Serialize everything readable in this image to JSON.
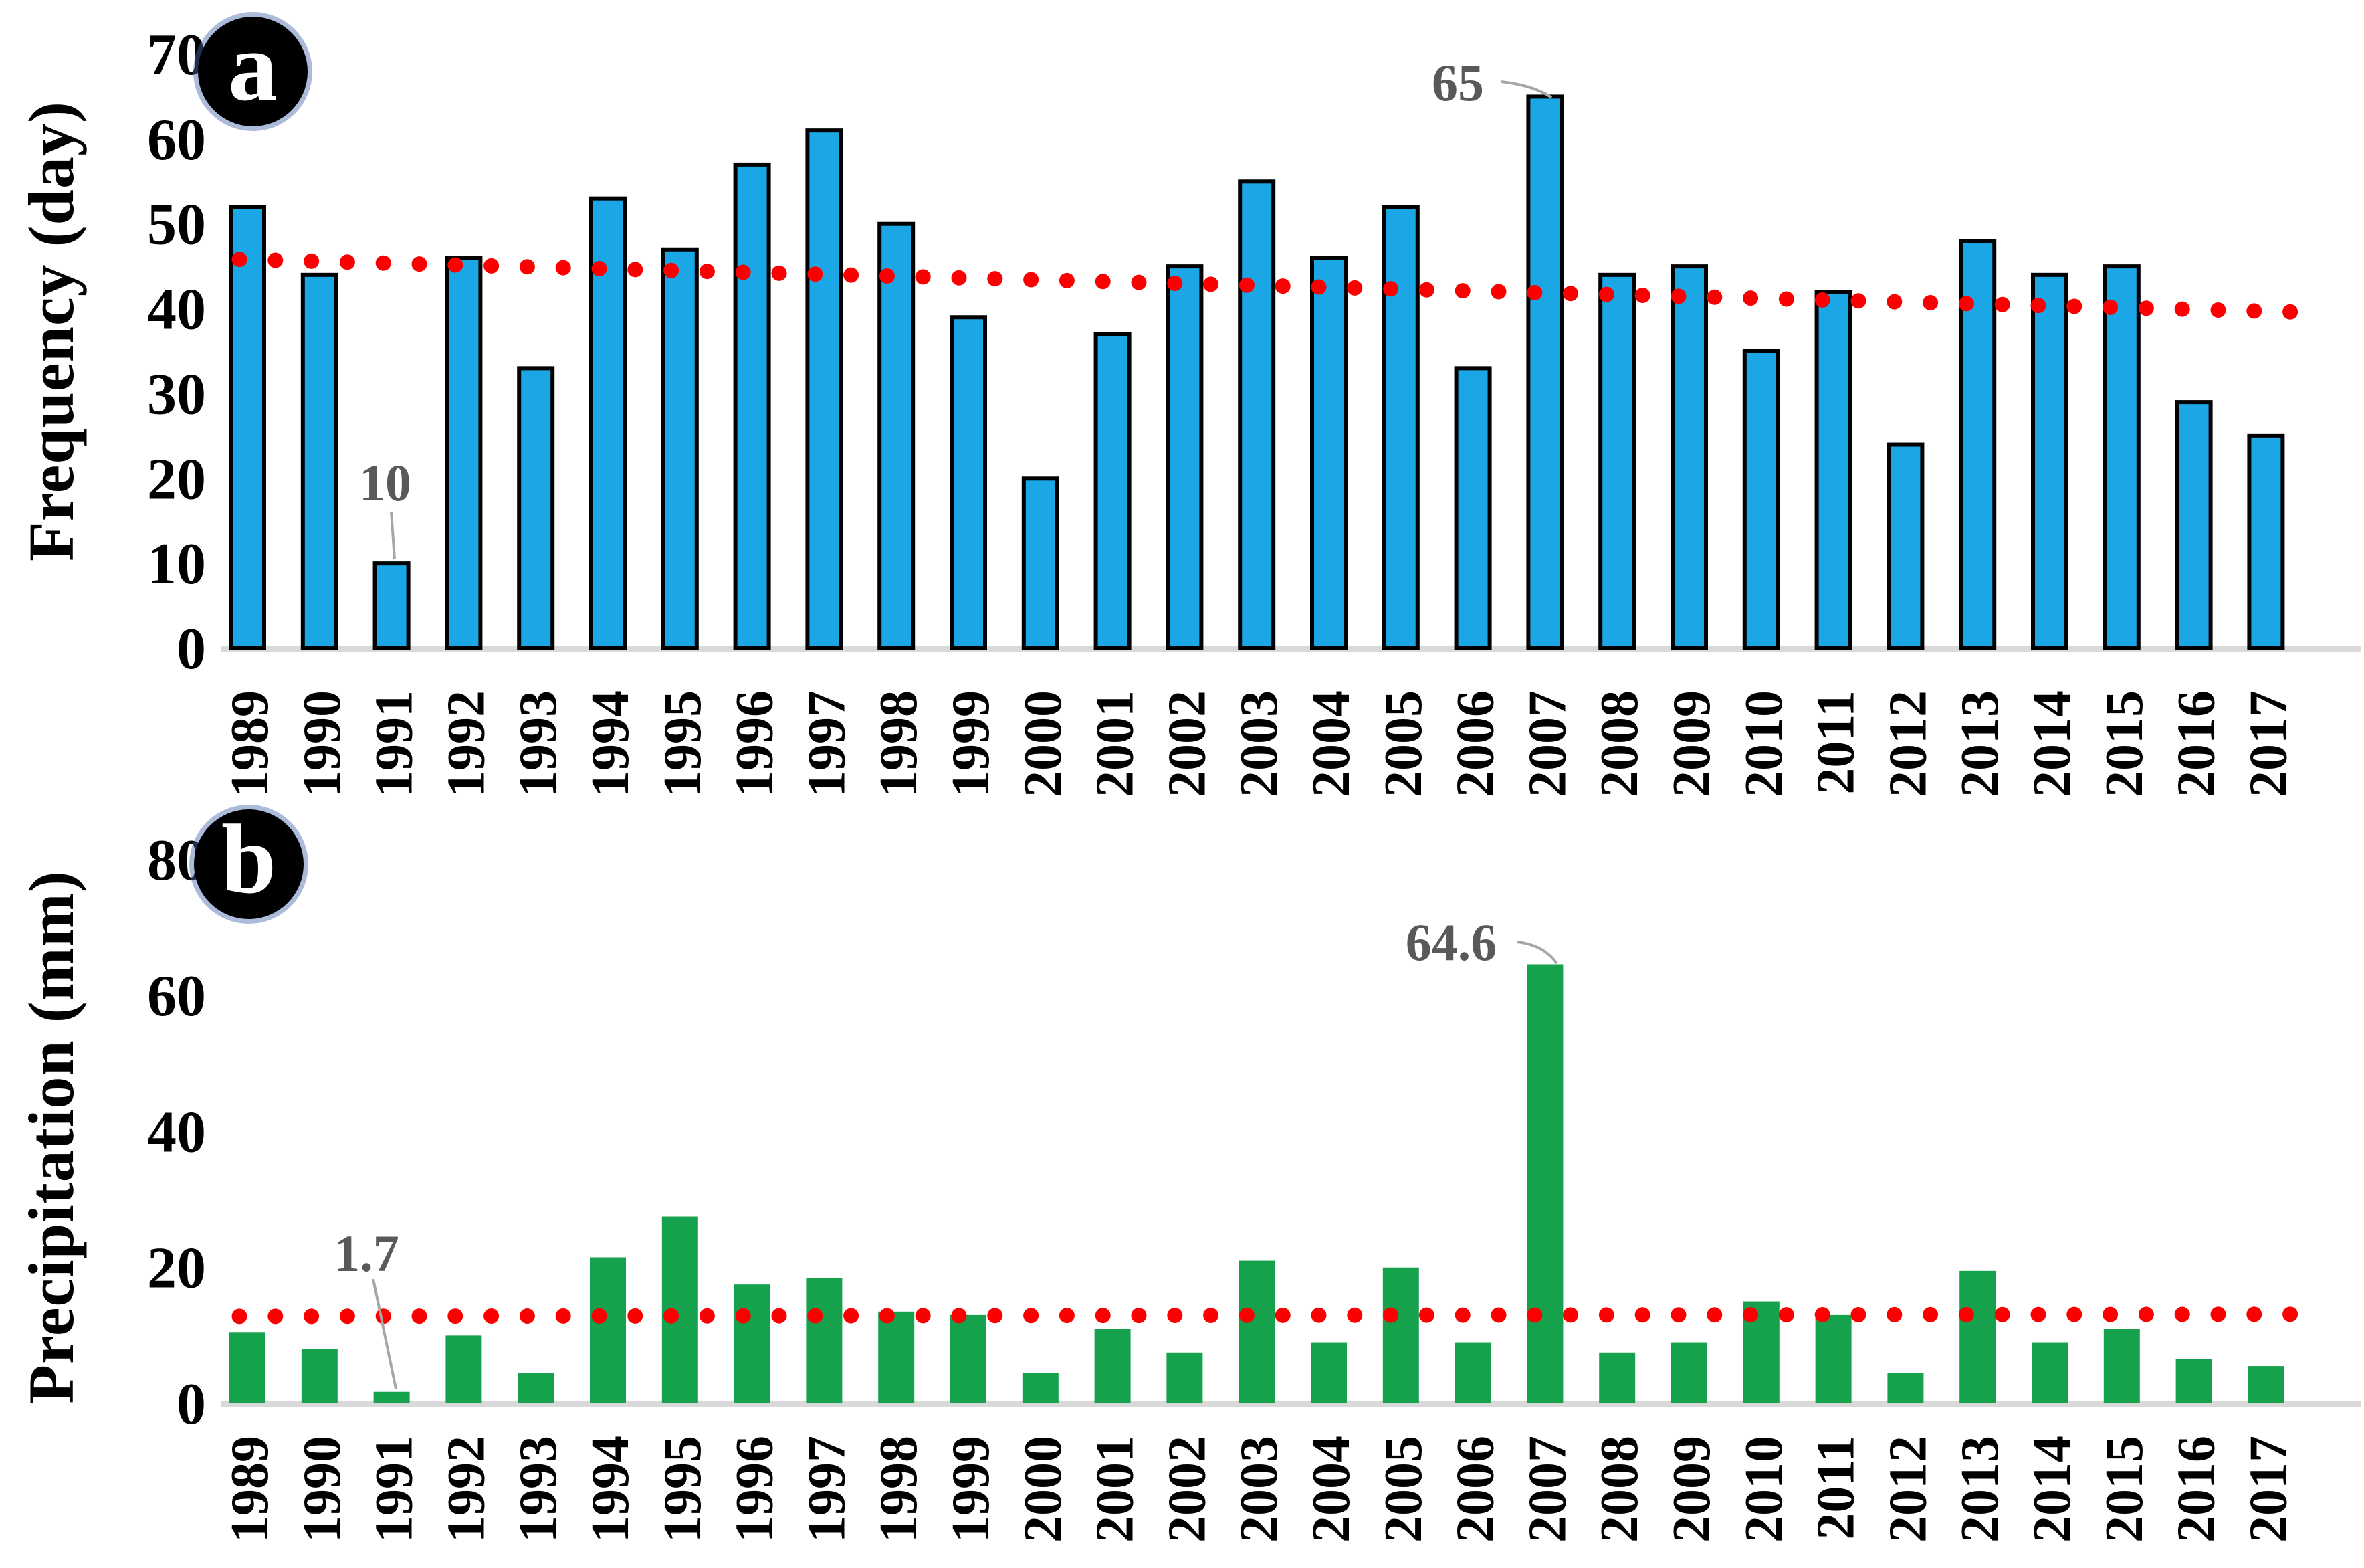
{
  "figure": {
    "panels": [
      {
        "badge": "a",
        "y_axis_title": "Frequency (day)",
        "annotations": [
          {
            "text": "10",
            "year": "1991"
          },
          {
            "text": "65",
            "year": "2007"
          }
        ]
      },
      {
        "badge": "b",
        "y_axis_title": "Precipitation (mm)",
        "annotations": [
          {
            "text": "1.7",
            "year": "1991"
          },
          {
            "text": "64.6",
            "year": "2007"
          }
        ]
      }
    ]
  },
  "colors": {
    "bar_blue": "#1BA6E6",
    "bar_blue_outline": "#000000",
    "bar_green": "#16A24D",
    "trend_red": "#FA0000",
    "baseline_gray": "#D9D9D9",
    "annotation_text": "#595959",
    "leader_line": "#A6A6A6",
    "axis_text": "#000000"
  },
  "chart_data": [
    {
      "type": "bar",
      "panel": "a",
      "title": "",
      "xlabel": "",
      "ylabel": "Frequency (day)",
      "categories": [
        "1989",
        "1990",
        "1991",
        "1992",
        "1993",
        "1994",
        "1995",
        "1996",
        "1997",
        "1998",
        "1999",
        "2000",
        "2001",
        "2002",
        "2003",
        "2004",
        "2005",
        "2006",
        "2007",
        "2008",
        "2009",
        "2010",
        "2011",
        "2012",
        "2013",
        "2014",
        "2015",
        "2016",
        "2017"
      ],
      "values": [
        52,
        44,
        10,
        46,
        33,
        53,
        47,
        57,
        61,
        50,
        39,
        20,
        37,
        45,
        55,
        46,
        52,
        33,
        65,
        44,
        45,
        35,
        42,
        24,
        48,
        44,
        45,
        29,
        25
      ],
      "ylim": [
        0,
        70
      ],
      "y_ticks": [
        0,
        10,
        20,
        30,
        40,
        50,
        60,
        70
      ],
      "grid": false,
      "legend": "none",
      "bar_color": "#1BA6E6",
      "bar_outline": "#000000",
      "trendline": {
        "style": "dotted",
        "color": "#FA0000",
        "start_value": 45.8,
        "end_value": 39.7
      },
      "annotations": [
        {
          "text": "10",
          "year": "1991",
          "value": 10
        },
        {
          "text": "65",
          "year": "2007",
          "value": 65
        }
      ]
    },
    {
      "type": "bar",
      "panel": "b",
      "title": "",
      "xlabel": "",
      "ylabel": "Precipitation (mm)",
      "categories": [
        "1989",
        "1990",
        "1991",
        "1992",
        "1993",
        "1994",
        "1995",
        "1996",
        "1997",
        "1998",
        "1999",
        "2000",
        "2001",
        "2002",
        "2003",
        "2004",
        "2005",
        "2006",
        "2007",
        "2008",
        "2009",
        "2010",
        "2011",
        "2012",
        "2013",
        "2014",
        "2015",
        "2016",
        "2017"
      ],
      "values": [
        10.5,
        8,
        1.7,
        10,
        4.5,
        21.5,
        27.5,
        17.5,
        18.5,
        13.5,
        13,
        4.5,
        11,
        7.5,
        21,
        9,
        20,
        9,
        64.6,
        7.5,
        9,
        15,
        13,
        4.5,
        19.5,
        9,
        11,
        6.5,
        5.5
      ],
      "ylim": [
        0,
        80
      ],
      "y_ticks": [
        0,
        20,
        40,
        60,
        80
      ],
      "grid": false,
      "legend": "none",
      "bar_color": "#16A24D",
      "bar_outline": "none",
      "trendline": {
        "style": "dotted",
        "color": "#FA0000",
        "start_value": 12.8,
        "end_value": 13.1
      },
      "annotations": [
        {
          "text": "1.7",
          "year": "1991",
          "value": 1.7
        },
        {
          "text": "64.6",
          "year": "2007",
          "value": 64.6
        }
      ]
    }
  ]
}
